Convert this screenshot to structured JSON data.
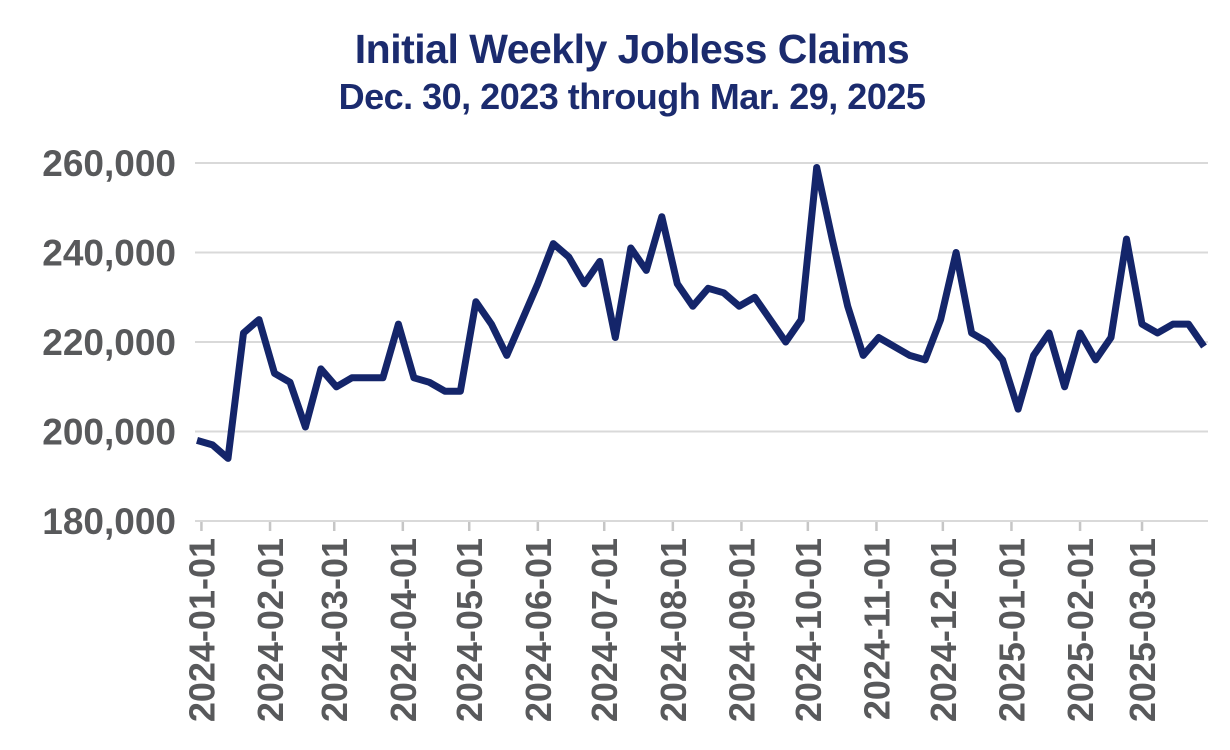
{
  "header": {
    "title": "Initial Weekly Jobless Claims",
    "subtitle": "Dec. 30, 2023 through Mar. 29, 2025"
  },
  "colors": {
    "line": "#14256a",
    "title_text": "#1b2b6e",
    "axis_text": "#58595b",
    "gridline": "#d9d9d9",
    "tick": "#c6c6c6",
    "background": "#ffffff"
  },
  "chart_data": {
    "type": "line",
    "title": "Initial Weekly Jobless Claims",
    "subtitle": "Dec. 30, 2023 through Mar. 29, 2025",
    "xlabel": "",
    "ylabel": "",
    "legend": "none",
    "grid": "horizontal",
    "ylim": [
      180000,
      265000
    ],
    "y_ticks": [
      {
        "label": "260,000",
        "value": 260000
      },
      {
        "label": "240,000",
        "value": 240000
      },
      {
        "label": "220,000",
        "value": 220000
      },
      {
        "label": "200,000",
        "value": 200000
      },
      {
        "label": "180,000",
        "value": 180000
      }
    ],
    "x_tick_labels": [
      "2024-01-01",
      "2024-02-01",
      "2024-03-01",
      "2024-04-01",
      "2024-05-01",
      "2024-06-01",
      "2024-07-01",
      "2024-08-01",
      "2024-09-01",
      "2024-10-01",
      "2024-11-01",
      "2024-12-01",
      "2025-01-01",
      "2025-02-01",
      "2025-03-01"
    ],
    "x": [
      "2023-12-30",
      "2024-01-06",
      "2024-01-13",
      "2024-01-20",
      "2024-01-27",
      "2024-02-03",
      "2024-02-10",
      "2024-02-17",
      "2024-02-24",
      "2024-03-02",
      "2024-03-09",
      "2024-03-16",
      "2024-03-23",
      "2024-03-30",
      "2024-04-06",
      "2024-04-13",
      "2024-04-20",
      "2024-04-27",
      "2024-05-04",
      "2024-05-11",
      "2024-05-18",
      "2024-05-25",
      "2024-06-01",
      "2024-06-08",
      "2024-06-15",
      "2024-06-22",
      "2024-06-29",
      "2024-07-06",
      "2024-07-13",
      "2024-07-20",
      "2024-07-27",
      "2024-08-03",
      "2024-08-10",
      "2024-08-17",
      "2024-08-24",
      "2024-08-31",
      "2024-09-07",
      "2024-09-14",
      "2024-09-21",
      "2024-09-28",
      "2024-10-05",
      "2024-10-12",
      "2024-10-19",
      "2024-10-26",
      "2024-11-02",
      "2024-11-09",
      "2024-11-16",
      "2024-11-23",
      "2024-11-30",
      "2024-12-07",
      "2024-12-14",
      "2024-12-21",
      "2024-12-28",
      "2025-01-04",
      "2025-01-11",
      "2025-01-18",
      "2025-01-25",
      "2025-02-01",
      "2025-02-08",
      "2025-02-15",
      "2025-02-22",
      "2025-03-01",
      "2025-03-08",
      "2025-03-15",
      "2025-03-22",
      "2025-03-29"
    ],
    "values": [
      198000,
      197000,
      194000,
      222000,
      225000,
      213000,
      211000,
      201000,
      214000,
      210000,
      212000,
      212000,
      212000,
      224000,
      212000,
      211000,
      209000,
      209000,
      229000,
      224000,
      217000,
      225000,
      233000,
      242000,
      239000,
      233000,
      238000,
      221000,
      241000,
      236000,
      248000,
      233000,
      228000,
      232000,
      231000,
      228000,
      230000,
      225000,
      220000,
      225000,
      259000,
      243000,
      228000,
      217000,
      221000,
      219000,
      217000,
      216000,
      225000,
      240000,
      222000,
      220000,
      216000,
      205000,
      217000,
      222000,
      210000,
      222000,
      216000,
      221000,
      243000,
      224000,
      222000,
      224000,
      224000,
      219000
    ]
  }
}
